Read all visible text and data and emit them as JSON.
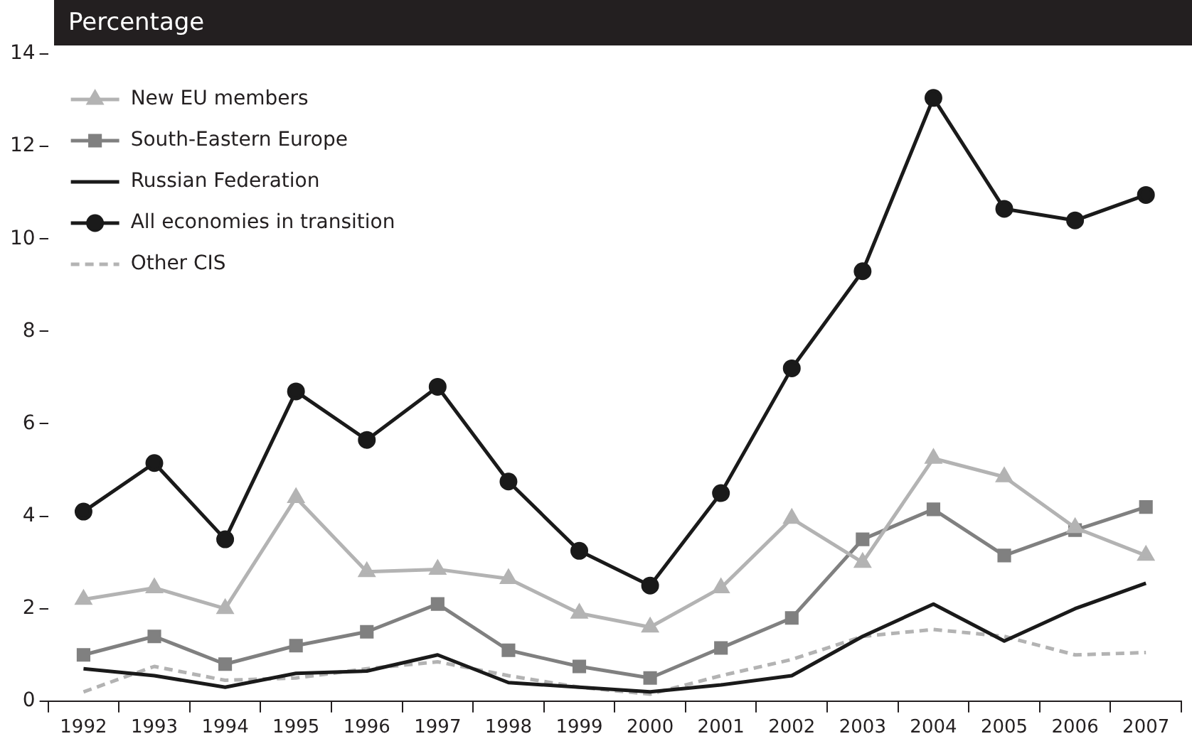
{
  "chart_data": {
    "type": "line",
    "title": "Percentage",
    "categories": [
      "1992",
      "1993",
      "1994",
      "1995",
      "1996",
      "1997",
      "1998",
      "1999",
      "2000",
      "2001",
      "2002",
      "2003",
      "2004",
      "2005",
      "2006",
      "2007"
    ],
    "series": [
      {
        "name": "New EU members",
        "color": "#b3b3b3",
        "marker": "triangle",
        "values": [
          2.2,
          2.45,
          2.0,
          4.4,
          2.8,
          2.85,
          2.65,
          1.9,
          1.6,
          2.45,
          3.95,
          3.0,
          5.25,
          4.85,
          3.75,
          3.15
        ]
      },
      {
        "name": "South-Eastern Europe",
        "color": "#808080",
        "marker": "square",
        "values": [
          1.0,
          1.4,
          0.8,
          1.2,
          1.5,
          2.1,
          1.1,
          0.75,
          0.5,
          1.15,
          1.8,
          3.5,
          4.15,
          3.15,
          3.7,
          4.2
        ]
      },
      {
        "name": "Russian Federation",
        "color": "#1a1a1a",
        "marker": "none",
        "values": [
          0.7,
          0.55,
          0.3,
          0.6,
          0.65,
          1.0,
          0.4,
          0.3,
          0.2,
          0.35,
          0.55,
          1.4,
          2.1,
          1.3,
          2.0,
          2.55
        ]
      },
      {
        "name": "All economies in transition",
        "color": "#1a1a1a",
        "marker": "circle",
        "values": [
          4.1,
          5.15,
          3.5,
          6.7,
          5.65,
          6.8,
          4.75,
          3.25,
          2.5,
          4.5,
          7.2,
          9.3,
          13.05,
          10.65,
          10.4,
          10.95
        ]
      },
      {
        "name": "Other CIS",
        "color": "#b3b3b3",
        "marker": "none",
        "line_style": "dashed",
        "values": [
          0.2,
          0.75,
          0.45,
          0.5,
          0.7,
          0.85,
          0.55,
          0.3,
          0.15,
          0.55,
          0.9,
          1.4,
          1.55,
          1.4,
          1.0,
          1.05
        ]
      }
    ],
    "ylim": [
      0,
      14
    ],
    "yticks": [
      0,
      2,
      4,
      6,
      8,
      10,
      12,
      14
    ],
    "grid": false,
    "legend": "top left"
  }
}
